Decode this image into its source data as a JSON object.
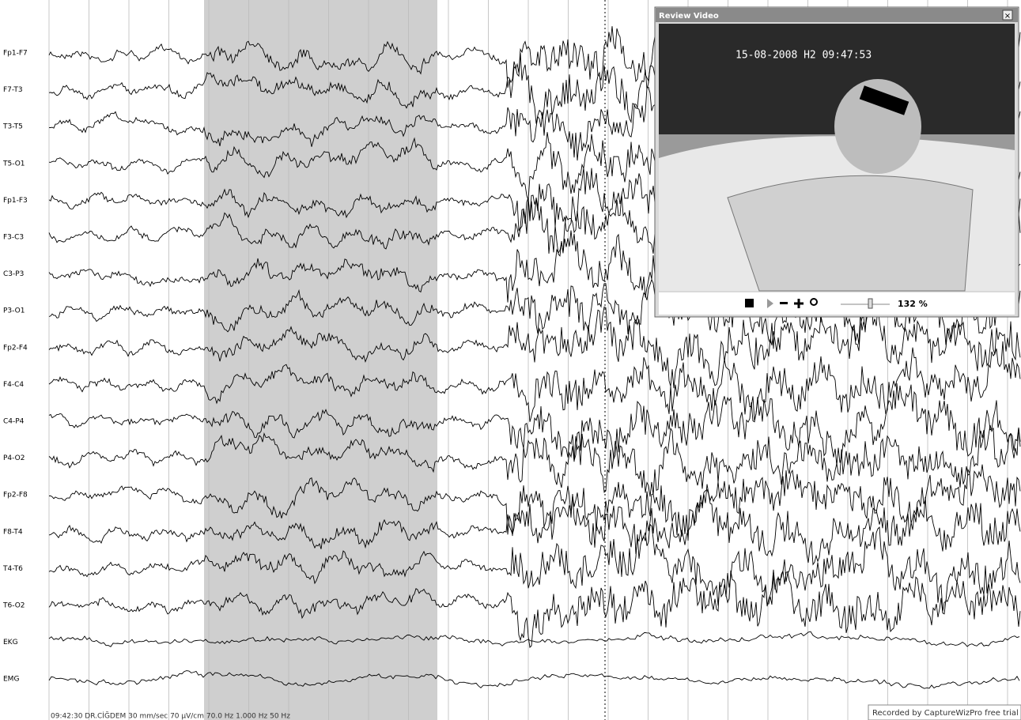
{
  "channels": [
    "Fp1-F7",
    "F7-T3",
    "T3-T5",
    "T5-O1",
    "Fp1-F3",
    "F3-C3",
    "C3-P3",
    "P3-O1",
    "Fp2-F4",
    "F4-C4",
    "C4-P4",
    "P4-O2",
    "Fp2-F8",
    "F8-T4",
    "T4-T6",
    "T6-O2",
    "EKG",
    "EMG"
  ],
  "status_bar": "09:42:30 DR.CİĞDEM  30 mm/sec  70 µV/cm  70.0 Hz  1.000 Hz  50 Hz",
  "video_window": {
    "title": "Review Video",
    "timestamp": "15-08-2008 H2 09:47:53",
    "zoom": "132 %"
  },
  "watermark": "Recorded by CaptureWizPro free trial"
}
